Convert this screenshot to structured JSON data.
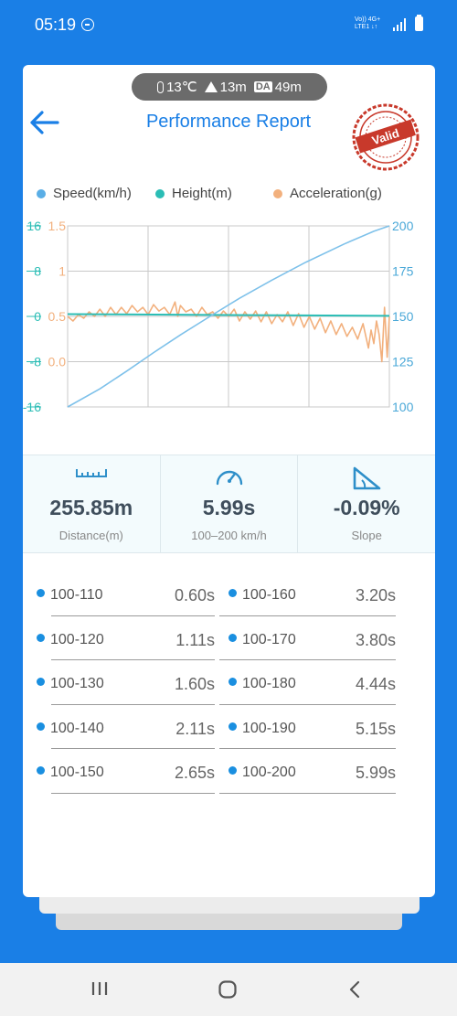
{
  "status_bar": {
    "time": "05:19",
    "network": "Vo)) 4G+\nLTE1 ↓↑"
  },
  "environment": {
    "temperature": "13℃",
    "altitude": "13m",
    "da_badge": "DA",
    "density_altitude": "49m"
  },
  "header": {
    "title": "Performance Report",
    "stamp_text": "Valid"
  },
  "colors": {
    "speed": "#7ec1ea",
    "height": "#2bbdb5",
    "acceleration": "#f2b07d",
    "accent": "#1a7fe6",
    "stamp": "#c8392b"
  },
  "legend": [
    {
      "label": "Speed(km/h)",
      "color": "#5aaee6"
    },
    {
      "label": "Height(m)",
      "color": "#2bbdb5"
    },
    {
      "label": "Acceleration(g)",
      "color": "#f2b07d"
    }
  ],
  "chart_data": {
    "type": "line",
    "x_range": [
      0,
      5.99
    ],
    "grid": true,
    "height_axis": {
      "ticks": [
        "16",
        "8",
        "0",
        "-8",
        "-16"
      ],
      "range": [
        -16,
        16
      ]
    },
    "acceleration_axis": {
      "ticks": [
        "1.5",
        "1",
        "0.5",
        "0.0"
      ],
      "range": [
        -0.5,
        1.5
      ]
    },
    "speed_axis": {
      "ticks": [
        "200",
        "175",
        "150",
        "125",
        "100"
      ],
      "range": [
        100,
        200
      ]
    },
    "series": [
      {
        "name": "Speed(km/h)",
        "axis": "speed",
        "points": [
          [
            0,
            100
          ],
          [
            0.6,
            110
          ],
          [
            1.11,
            120
          ],
          [
            1.6,
            130
          ],
          [
            2.11,
            140
          ],
          [
            2.65,
            150
          ],
          [
            3.2,
            160
          ],
          [
            3.8,
            170
          ],
          [
            4.44,
            180
          ],
          [
            5.15,
            190
          ],
          [
            5.7,
            197
          ],
          [
            5.99,
            200
          ]
        ]
      },
      {
        "name": "Height(m)",
        "axis": "height",
        "points": [
          [
            0,
            0.4
          ],
          [
            5.99,
            0.1
          ]
        ]
      },
      {
        "name": "Acceleration(g)",
        "axis": "acceleration",
        "points": [
          [
            0,
            0.5
          ],
          [
            0.1,
            0.45
          ],
          [
            0.2,
            0.52
          ],
          [
            0.3,
            0.48
          ],
          [
            0.4,
            0.55
          ],
          [
            0.5,
            0.5
          ],
          [
            0.6,
            0.58
          ],
          [
            0.7,
            0.5
          ],
          [
            0.8,
            0.6
          ],
          [
            0.9,
            0.52
          ],
          [
            1.0,
            0.6
          ],
          [
            1.1,
            0.53
          ],
          [
            1.2,
            0.62
          ],
          [
            1.3,
            0.55
          ],
          [
            1.4,
            0.6
          ],
          [
            1.5,
            0.52
          ],
          [
            1.6,
            0.63
          ],
          [
            1.7,
            0.56
          ],
          [
            1.8,
            0.6
          ],
          [
            1.9,
            0.52
          ],
          [
            2.0,
            0.66
          ],
          [
            2.05,
            0.5
          ],
          [
            2.1,
            0.62
          ],
          [
            2.2,
            0.55
          ],
          [
            2.3,
            0.58
          ],
          [
            2.4,
            0.5
          ],
          [
            2.5,
            0.6
          ],
          [
            2.6,
            0.52
          ],
          [
            2.7,
            0.55
          ],
          [
            2.8,
            0.48
          ],
          [
            2.9,
            0.56
          ],
          [
            3.0,
            0.5
          ],
          [
            3.1,
            0.58
          ],
          [
            3.2,
            0.45
          ],
          [
            3.3,
            0.55
          ],
          [
            3.4,
            0.47
          ],
          [
            3.5,
            0.56
          ],
          [
            3.6,
            0.44
          ],
          [
            3.7,
            0.55
          ],
          [
            3.8,
            0.42
          ],
          [
            3.9,
            0.52
          ],
          [
            4.0,
            0.44
          ],
          [
            4.1,
            0.55
          ],
          [
            4.2,
            0.4
          ],
          [
            4.3,
            0.53
          ],
          [
            4.4,
            0.38
          ],
          [
            4.5,
            0.5
          ],
          [
            4.6,
            0.36
          ],
          [
            4.7,
            0.48
          ],
          [
            4.8,
            0.32
          ],
          [
            4.9,
            0.45
          ],
          [
            5.0,
            0.3
          ],
          [
            5.1,
            0.42
          ],
          [
            5.2,
            0.28
          ],
          [
            5.3,
            0.38
          ],
          [
            5.4,
            0.25
          ],
          [
            5.5,
            0.42
          ],
          [
            5.6,
            0.15
          ],
          [
            5.65,
            0.35
          ],
          [
            5.7,
            0.2
          ],
          [
            5.75,
            0.45
          ],
          [
            5.8,
            0.3
          ],
          [
            5.85,
            0.0
          ],
          [
            5.9,
            0.6
          ],
          [
            5.95,
            0.05
          ],
          [
            5.99,
            0.5
          ]
        ]
      }
    ]
  },
  "summary": [
    {
      "value": "255.85m",
      "label": "Distance(m)",
      "icon": "ruler-icon"
    },
    {
      "value": "5.99s",
      "label": "100–200 km/h",
      "icon": "speedometer-icon"
    },
    {
      "value": "-0.09%",
      "label": "Slope",
      "icon": "slope-icon"
    }
  ],
  "splits": [
    {
      "left": {
        "range": "100-110",
        "time": "0.60s"
      },
      "right": {
        "range": "100-160",
        "time": "3.20s"
      }
    },
    {
      "left": {
        "range": "100-120",
        "time": "1.11s"
      },
      "right": {
        "range": "100-170",
        "time": "3.80s"
      }
    },
    {
      "left": {
        "range": "100-130",
        "time": "1.60s"
      },
      "right": {
        "range": "100-180",
        "time": "4.44s"
      }
    },
    {
      "left": {
        "range": "100-140",
        "time": "2.11s"
      },
      "right": {
        "range": "100-190",
        "time": "5.15s"
      }
    },
    {
      "left": {
        "range": "100-150",
        "time": "2.65s"
      },
      "right": {
        "range": "100-200",
        "time": "5.99s"
      }
    }
  ]
}
